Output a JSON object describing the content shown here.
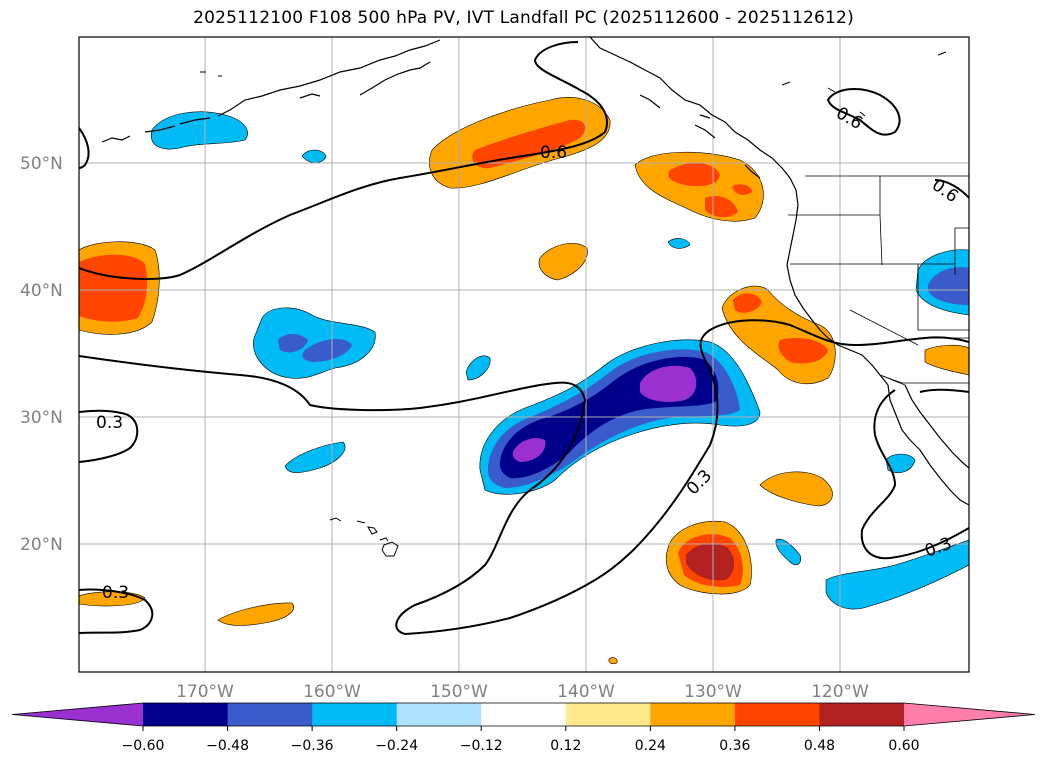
{
  "title": "2025112100 F108 500 hPa PV, IVT Landfall PC (2025112600 - 2025112612)",
  "lat_labels": [
    "50°N",
    "40°N",
    "30°N",
    "20°N"
  ],
  "lon_labels": [
    "170°W",
    "160°W",
    "150°W",
    "140°W",
    "130°W",
    "120°W"
  ],
  "pv_contour_labels": [
    "0.6",
    "0.6",
    "0.6",
    "0.3",
    "0.3",
    "0.3",
    "0.3"
  ],
  "colorbar": {
    "tick_labels": [
      "−0.60",
      "−0.48",
      "−0.36",
      "−0.24",
      "−0.12",
      "0.12",
      "0.24",
      "0.36",
      "0.48",
      "0.60"
    ],
    "colors": [
      "#9b30d0",
      "#00008b",
      "#3a5bcc",
      "#00bbf5",
      "#b0e2ff",
      "#ffffff",
      "#ffe98c",
      "#ffa500",
      "#ff4500",
      "#b22222",
      "#ff7faa"
    ]
  },
  "colors": {
    "neg_strong": "#9b30d0",
    "neg_2": "#00008b",
    "neg_3": "#3a5bcc",
    "neg_4": "#00bbf5",
    "pos_2": "#ffa500",
    "pos_3": "#ff4500",
    "pos_4": "#b22222",
    "grid": "#b0b0b0",
    "coast": "#000000"
  }
}
